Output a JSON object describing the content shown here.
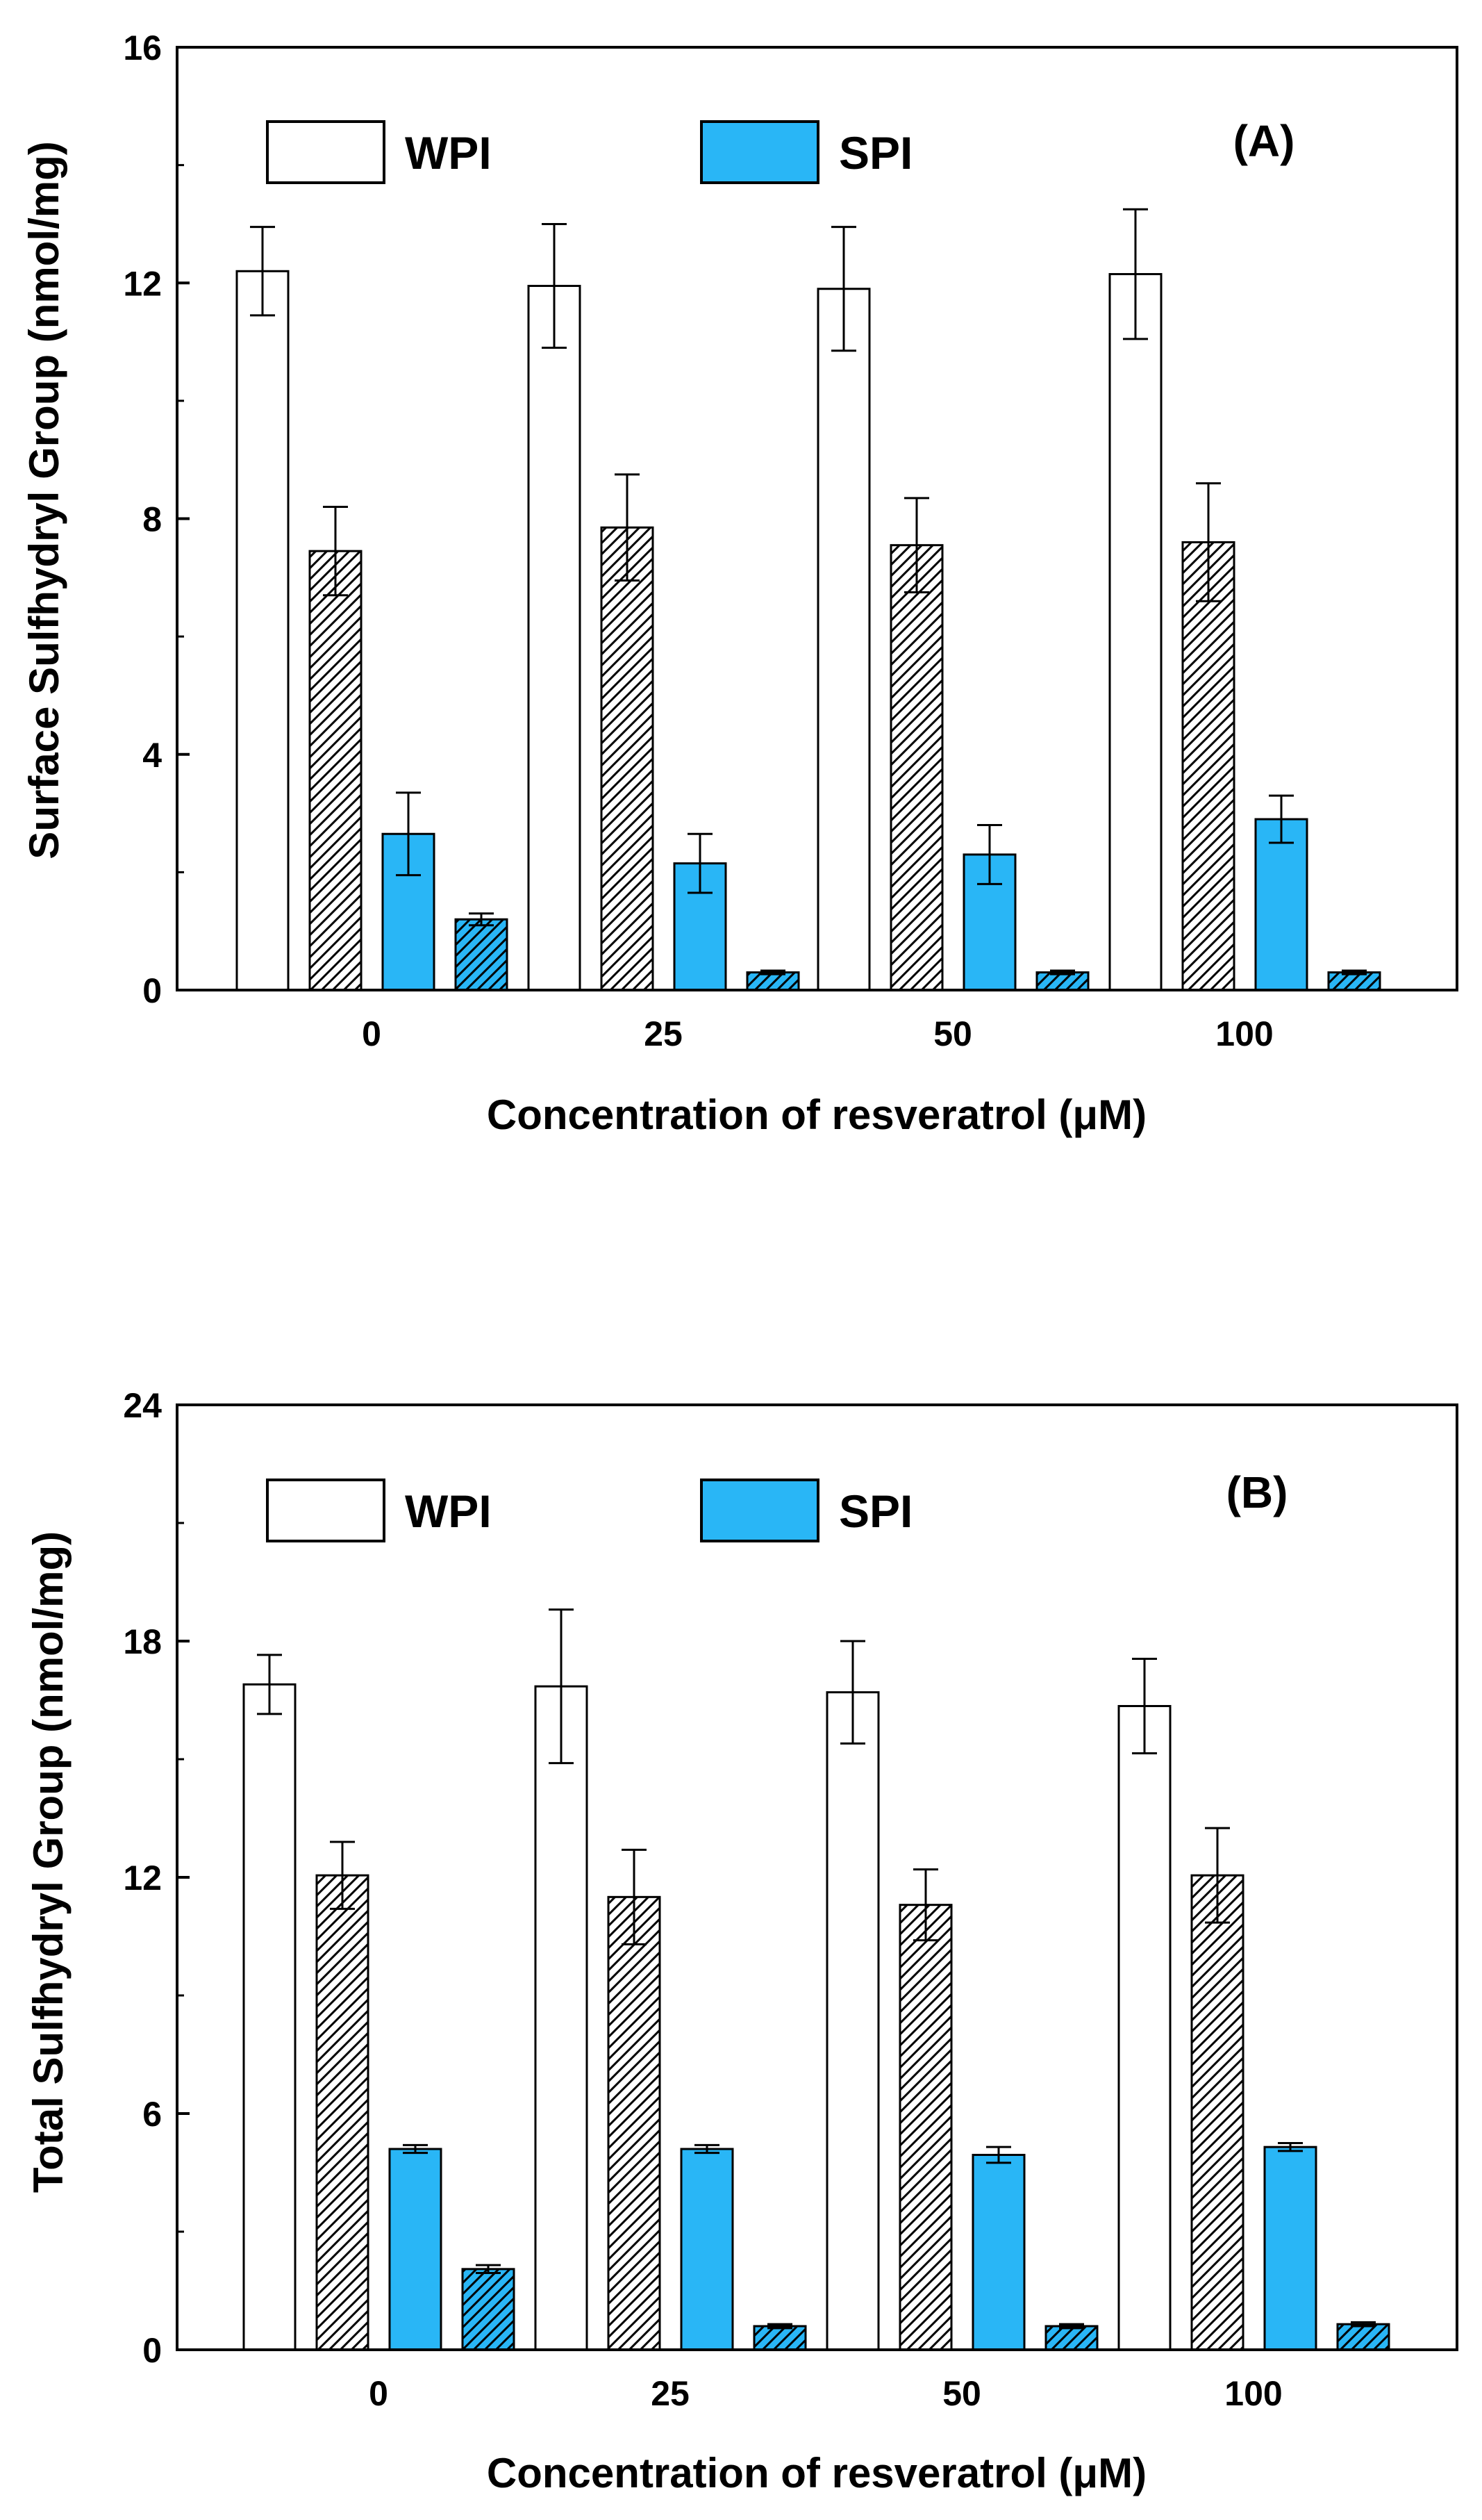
{
  "chart_data": [
    {
      "type": "bar",
      "panel_label": "(A)",
      "xlabel": "Concentration of resveratrol (μM)",
      "ylabel": "Surface Sulfhydryl Group (nmol/mg)",
      "categories": [
        "0",
        "25",
        "50",
        "100"
      ],
      "ylim": [
        0,
        16
      ],
      "yticks": [
        0,
        4,
        8,
        12,
        16
      ],
      "legend": [
        {
          "name": "WPI",
          "fill": "#ffffff"
        },
        {
          "name": "SPI",
          "fill": "#29b6f6"
        }
      ],
      "series": [
        {
          "name": "WPI",
          "style": "white",
          "values": [
            12.2,
            11.95,
            11.9,
            12.15
          ],
          "errors": [
            0.75,
            1.05,
            1.05,
            1.1
          ]
        },
        {
          "name": "WPI (hatched)",
          "style": "white-hatched",
          "values": [
            7.45,
            7.85,
            7.55,
            7.6
          ],
          "errors": [
            0.75,
            0.9,
            0.8,
            1.0
          ]
        },
        {
          "name": "SPI",
          "style": "blue",
          "values": [
            2.65,
            2.15,
            2.3,
            2.9
          ],
          "errors": [
            0.7,
            0.5,
            0.5,
            0.4
          ]
        },
        {
          "name": "SPI (hatched)",
          "style": "blue-hatched",
          "values": [
            1.2,
            0.3,
            0.3,
            0.3
          ],
          "errors": [
            0.1,
            0.03,
            0.03,
            0.03
          ]
        }
      ]
    },
    {
      "type": "bar",
      "panel_label": "(B)",
      "xlabel": "Concentration of resveratrol (μM)",
      "ylabel": "Total Sulfhydryl Group (nmol/mg)",
      "categories": [
        "0",
        "25",
        "50",
        "100"
      ],
      "ylim": [
        0,
        24
      ],
      "yticks": [
        0,
        6,
        12,
        18,
        24
      ],
      "legend": [
        {
          "name": "WPI",
          "fill": "#ffffff"
        },
        {
          "name": "SPI",
          "fill": "#29b6f6"
        }
      ],
      "series": [
        {
          "name": "WPI",
          "style": "white",
          "values": [
            16.9,
            16.85,
            16.7,
            16.35
          ],
          "errors": [
            0.75,
            1.95,
            1.3,
            1.2
          ]
        },
        {
          "name": "WPI (hatched)",
          "style": "white-hatched",
          "values": [
            12.05,
            11.5,
            11.3,
            12.05
          ],
          "errors": [
            0.85,
            1.2,
            0.9,
            1.2
          ]
        },
        {
          "name": "SPI",
          "style": "blue",
          "values": [
            5.1,
            5.1,
            4.95,
            5.15
          ],
          "errors": [
            0.1,
            0.1,
            0.2,
            0.1
          ]
        },
        {
          "name": "SPI (hatched)",
          "style": "blue-hatched",
          "values": [
            2.05,
            0.6,
            0.6,
            0.65
          ],
          "errors": [
            0.1,
            0.05,
            0.05,
            0.05
          ]
        }
      ]
    }
  ]
}
